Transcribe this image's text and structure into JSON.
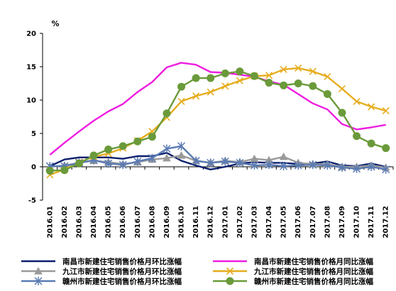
{
  "chart_data": {
    "type": "line",
    "unit_label": "%",
    "ylim": [
      -5,
      20
    ],
    "yticks": [
      -5,
      0,
      5,
      10,
      15,
      20
    ],
    "grid": false,
    "legend_position": "bottom",
    "x": [
      "2016.01",
      "2016.02",
      "2016.03",
      "2016.04",
      "2016.05",
      "2016.06",
      "2016.07",
      "2016.08",
      "2016.09",
      "2016.10",
      "2016.11",
      "2016.12",
      "2017.01",
      "2017.02",
      "2017.03",
      "2017.04",
      "2017.05",
      "2017.06",
      "2017.07",
      "2017.08",
      "2017.09",
      "2017.10",
      "2017.11",
      "2017.12"
    ],
    "series": [
      {
        "name": "南昌市新建住宅销售价格月环比涨幅",
        "color": "#0a1f6e",
        "marker": "none",
        "values": [
          0.1,
          1.1,
          1.4,
          1.4,
          1.4,
          1.2,
          1.6,
          1.6,
          2.1,
          0.9,
          0.2,
          -0.4,
          0.0,
          0.5,
          0.7,
          0.6,
          0.6,
          0.4,
          0.5,
          0.8,
          0.2,
          0.1,
          0.5,
          0.0
        ]
      },
      {
        "name": "南昌市新建住宅销售价格月同比涨幅",
        "color": "#ee1ee0",
        "marker": "none",
        "values": [
          1.8,
          3.6,
          5.3,
          6.9,
          8.3,
          9.4,
          11.2,
          12.7,
          14.9,
          15.6,
          15.3,
          14.2,
          14.1,
          13.8,
          13.5,
          12.8,
          12.3,
          10.9,
          9.5,
          8.6,
          6.4,
          5.6,
          5.9,
          6.3
        ]
      },
      {
        "name": "九江市新建住宅销售价格月环比涨幅",
        "color": "#9a9a9a",
        "marker": "triangle",
        "values": [
          0.0,
          0.2,
          0.6,
          0.9,
          0.7,
          0.4,
          0.7,
          1.1,
          1.3,
          1.7,
          0.9,
          0.6,
          0.9,
          0.7,
          1.2,
          1.0,
          1.5,
          0.6,
          0.4,
          0.4,
          0.0,
          0.0,
          0.2,
          -0.1
        ]
      },
      {
        "name": "九江市新建住宅销售价格月同比涨幅",
        "color": "#e6ad1e",
        "marker": "x",
        "values": [
          -1.2,
          -0.4,
          0.7,
          1.5,
          2.0,
          2.8,
          3.9,
          5.3,
          7.4,
          9.8,
          10.6,
          11.2,
          12.1,
          12.9,
          13.6,
          13.7,
          14.6,
          14.8,
          14.3,
          13.5,
          11.7,
          9.8,
          9.0,
          8.4
        ]
      },
      {
        "name": "赣州市新建住宅销售价格月环比涨幅",
        "color": "#5a7bb4",
        "marker": "asterisk",
        "values": [
          0.1,
          0.1,
          0.6,
          1.0,
          0.5,
          0.3,
          0.8,
          1.3,
          2.7,
          3.1,
          0.9,
          0.6,
          0.8,
          0.6,
          0.2,
          0.3,
          0.1,
          0.2,
          0.3,
          0.2,
          -0.1,
          -0.3,
          0.0,
          -0.4
        ]
      },
      {
        "name": "赣州市新建住宅销售价格月同比涨幅",
        "color": "#6a9a3a",
        "marker": "circle",
        "values": [
          -0.6,
          -0.5,
          0.5,
          1.7,
          2.6,
          3.1,
          3.8,
          4.5,
          8.0,
          12.0,
          13.3,
          13.3,
          14.0,
          14.3,
          13.6,
          12.6,
          12.2,
          12.5,
          12.1,
          10.9,
          8.1,
          4.6,
          3.5,
          2.8
        ]
      }
    ]
  }
}
